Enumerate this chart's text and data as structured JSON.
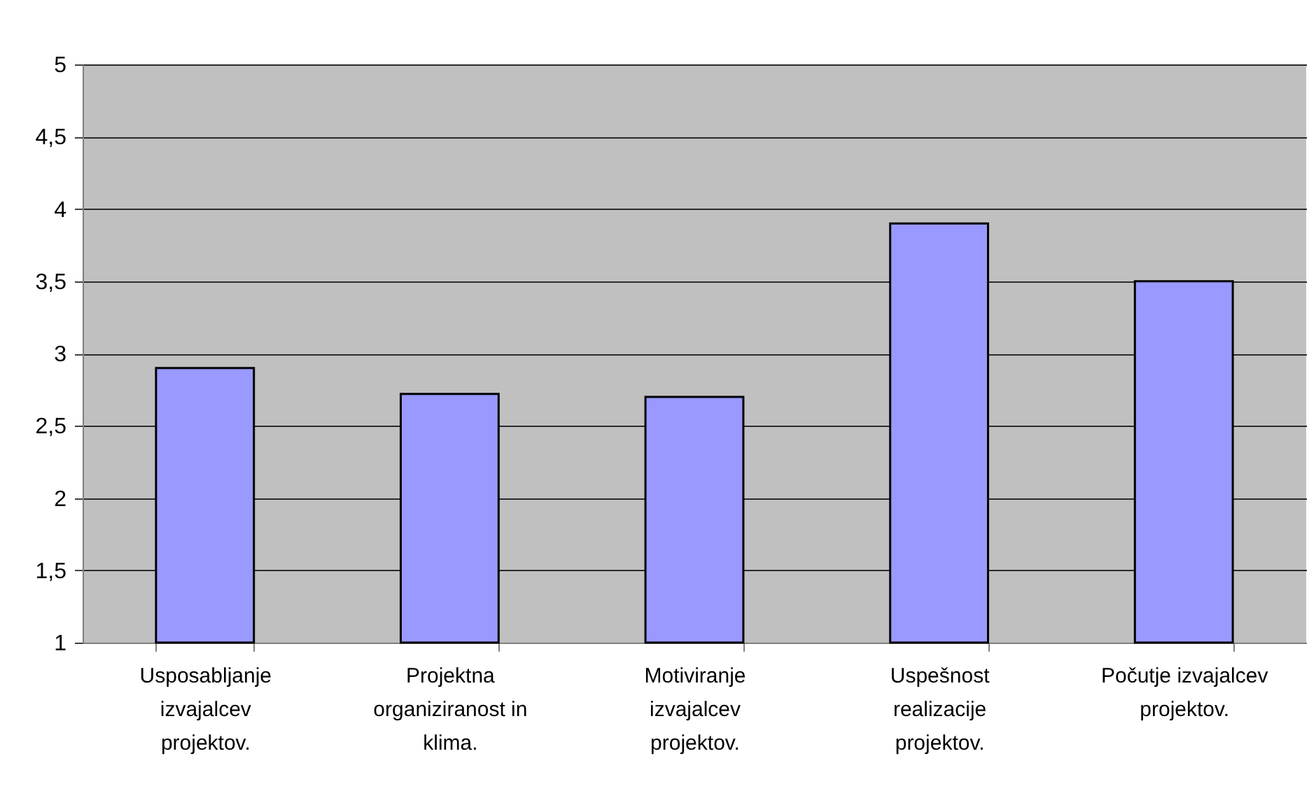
{
  "chart_data": {
    "type": "bar",
    "categories": [
      "Usposabljanje izvajalcev projektov.",
      "Projektna organiziranost in klima.",
      "Motiviranje izvajalcev projektov.",
      "Uspešnost realizacije projektov.",
      "Počutje izvajalcev projektov."
    ],
    "values": [
      2.9,
      2.72,
      2.7,
      3.9,
      3.5
    ],
    "color": "#9999ff",
    "ylim": [
      1,
      5
    ],
    "yticks": [
      1,
      {
        "value": 1.5,
        "label": "1,5"
      },
      2,
      {
        "value": 2.5,
        "label": "2,5"
      },
      3,
      {
        "value": 3.5,
        "label": "3,5"
      },
      4,
      {
        "value": 4.5,
        "label": "4,5"
      },
      5
    ],
    "grid": "y"
  }
}
